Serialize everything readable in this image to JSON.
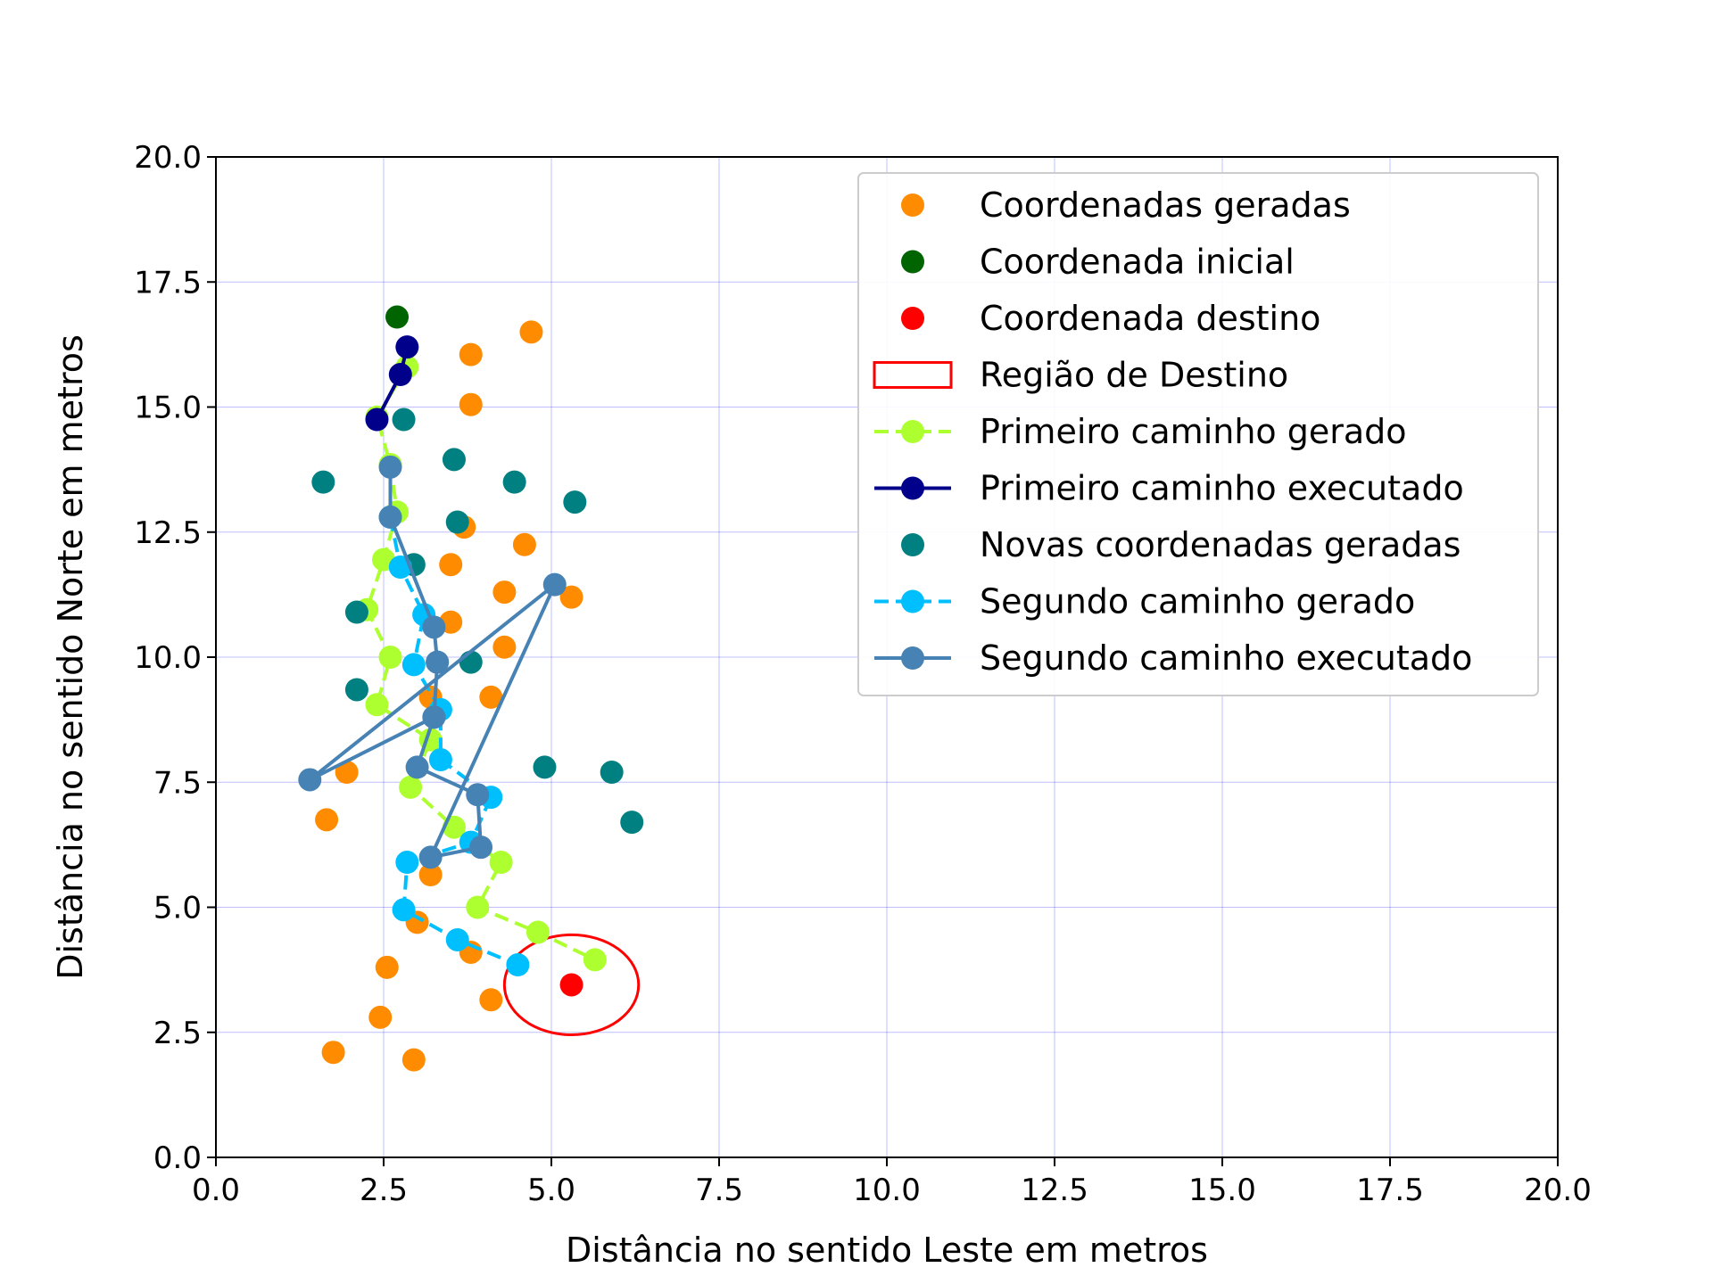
{
  "chart_data": {
    "type": "scatter",
    "title": "",
    "xlabel": "Distância no sentido Leste em metros",
    "ylabel": "Distância no sentido Norte em metros",
    "xlim": [
      0,
      20
    ],
    "ylim": [
      0,
      20
    ],
    "xticks": [
      "0.0",
      "2.5",
      "5.0",
      "7.5",
      "10.0",
      "12.5",
      "15.0",
      "17.5",
      "20.0"
    ],
    "yticks": [
      "0.0",
      "2.5",
      "5.0",
      "7.5",
      "10.0",
      "12.5",
      "15.0",
      "17.5",
      "20.0"
    ],
    "grid": true,
    "grid_color": "#0000ff",
    "legend_position": "top-right",
    "series": [
      {
        "name": "Coordenadas geradas",
        "kind": "points",
        "color": "#ff8c00",
        "x": [
          4.7,
          3.8,
          3.8,
          3.7,
          4.6,
          3.5,
          5.3,
          4.3,
          3.5,
          4.3,
          4.1,
          3.2,
          1.95,
          1.65,
          3.2,
          3.0,
          3.8,
          2.55,
          4.1,
          2.45,
          1.75,
          2.95
        ],
        "y": [
          16.5,
          16.05,
          15.05,
          12.6,
          12.25,
          11.85,
          11.2,
          11.3,
          10.7,
          10.2,
          9.2,
          9.2,
          7.7,
          6.75,
          5.65,
          4.7,
          4.1,
          3.8,
          3.15,
          2.8,
          2.1,
          1.95
        ]
      },
      {
        "name": "Coordenada inicial",
        "kind": "points",
        "color": "#006400",
        "x": [
          2.7
        ],
        "y": [
          16.8
        ]
      },
      {
        "name": "Coordenada destino",
        "kind": "points",
        "color": "#ff0000",
        "x": [
          5.3
        ],
        "y": [
          3.45
        ]
      },
      {
        "name": "Região de Destino",
        "kind": "ellipse",
        "color": "#ff0000",
        "center": [
          5.3,
          3.45
        ],
        "radius": [
          1.0,
          1.0
        ]
      },
      {
        "name": "Primeiro caminho gerado",
        "kind": "dashed-line",
        "color": "#adff2f",
        "x": [
          2.85,
          2.4,
          2.6,
          2.7,
          2.5,
          2.25,
          2.6,
          2.4,
          3.2,
          2.9,
          3.55,
          4.25,
          3.9,
          4.8,
          5.65
        ],
        "y": [
          15.8,
          14.8,
          13.85,
          12.9,
          11.95,
          10.95,
          10.0,
          9.05,
          8.35,
          7.4,
          6.6,
          5.9,
          5.0,
          4.5,
          3.95
        ]
      },
      {
        "name": "Primeiro caminho executado",
        "kind": "solid-line",
        "color": "#00008b",
        "x": [
          2.85,
          2.75,
          2.4
        ],
        "y": [
          16.2,
          15.65,
          14.75
        ]
      },
      {
        "name": "Novas coordenadas geradas",
        "kind": "points",
        "color": "#008080",
        "x": [
          2.8,
          3.55,
          1.6,
          4.45,
          5.35,
          3.6,
          2.95,
          2.1,
          3.8,
          2.1,
          4.9,
          5.9,
          6.2
        ],
        "y": [
          14.75,
          13.95,
          13.5,
          13.5,
          13.1,
          12.7,
          11.85,
          10.9,
          9.9,
          9.35,
          7.8,
          7.7,
          6.7
        ]
      },
      {
        "name": "Segundo caminho gerado",
        "kind": "dashed-line",
        "color": "#00bfff",
        "x": [
          2.6,
          2.75,
          3.1,
          2.95,
          3.35,
          3.35,
          4.1,
          3.8,
          2.85,
          2.8,
          3.6,
          4.5
        ],
        "y": [
          12.8,
          11.8,
          10.85,
          9.85,
          8.95,
          7.95,
          7.2,
          6.3,
          5.9,
          4.95,
          4.35,
          3.85
        ]
      },
      {
        "name": "Segundo caminho executado",
        "kind": "solid-line",
        "color": "#4682b4",
        "x": [
          2.6,
          2.6,
          3.25,
          3.3,
          3.25,
          1.4,
          5.05,
          3.2,
          3.95,
          3.9,
          3.0,
          3.25,
          3.3
        ],
        "y": [
          13.8,
          12.8,
          10.6,
          9.9,
          8.8,
          7.55,
          11.45,
          6.0,
          6.2,
          7.25,
          7.8,
          8.8,
          9.9
        ]
      }
    ]
  }
}
